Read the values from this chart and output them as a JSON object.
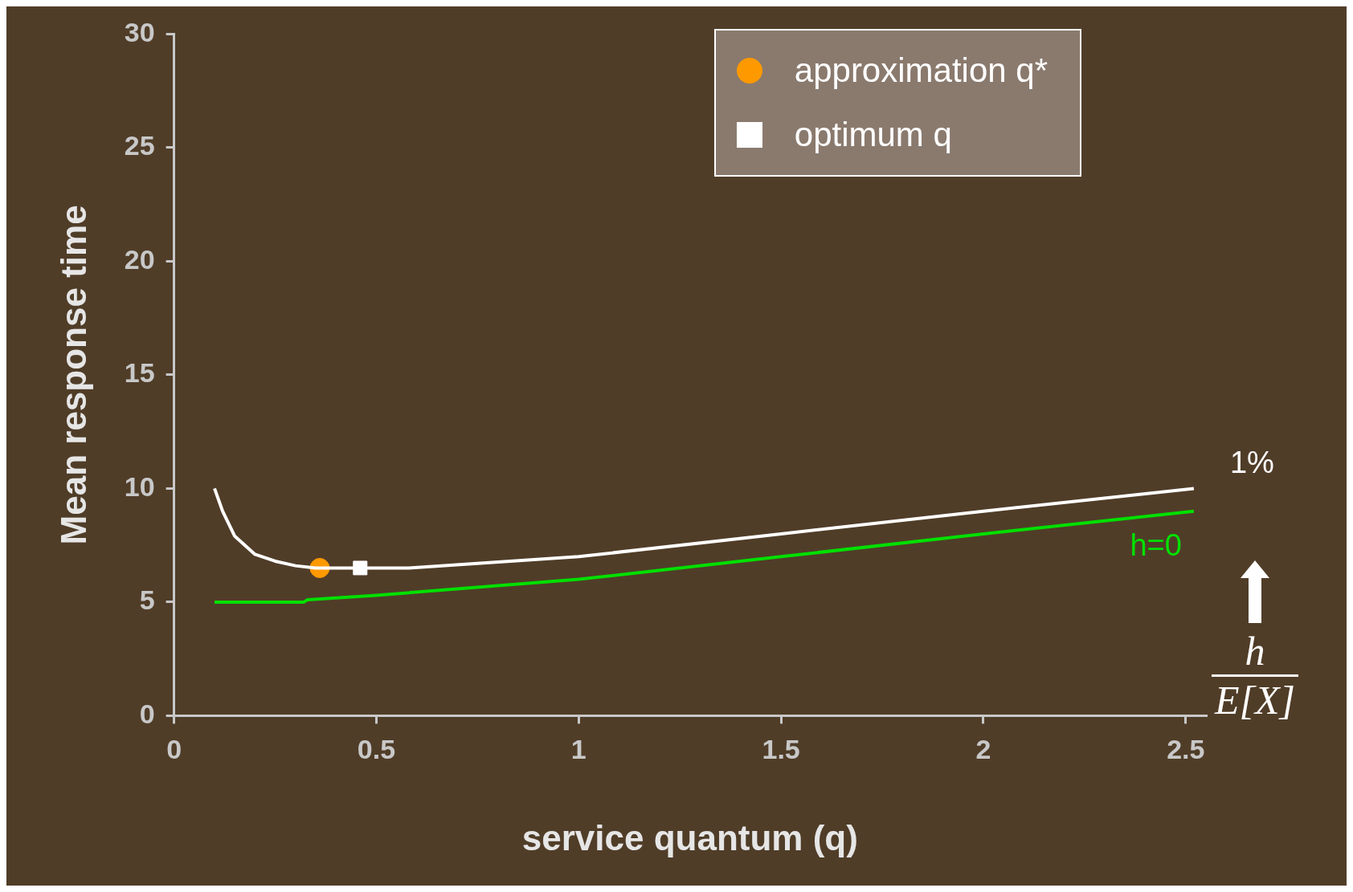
{
  "chart_data": {
    "type": "line",
    "xlabel": "service quantum (q)",
    "ylabel": "Mean response time",
    "xlim": [
      0,
      2.55
    ],
    "xticks": [
      0,
      0.5,
      1,
      1.5,
      2,
      2.5
    ],
    "ylim": [
      0,
      30
    ],
    "yticks": [
      0,
      5,
      10,
      15,
      20,
      25,
      30
    ],
    "grid": false,
    "legend": "top right",
    "annotations": [
      "h",
      "E[X]"
    ],
    "series": [
      {
        "name": "1%",
        "color": "#ffffff",
        "x": [
          0.1,
          0.12,
          0.15,
          0.2,
          0.25,
          0.3,
          0.35,
          0.5,
          0.58,
          1,
          1.5,
          2,
          2.52
        ],
        "values": [
          10,
          9,
          7.9,
          7.1,
          6.8,
          6.6,
          6.5,
          6.5,
          6.5,
          7,
          8,
          9,
          10
        ]
      },
      {
        "name": "h=0",
        "color": "#00e000",
        "x": [
          0.1,
          0.32,
          0.33,
          0.5,
          1,
          1.5,
          2,
          2.52
        ],
        "values": [
          5,
          5,
          5.1,
          5.3,
          6,
          7,
          8,
          9
        ]
      },
      {
        "name": "approximation q*",
        "type": "scatter",
        "marker": "circle",
        "color": "#ff9900",
        "x": [
          0.36
        ],
        "values": [
          6.5
        ]
      },
      {
        "name": "optimum q",
        "type": "scatter",
        "marker": "square",
        "color": "#ffffff",
        "x": [
          0.46
        ],
        "values": [
          6.5
        ]
      }
    ]
  }
}
